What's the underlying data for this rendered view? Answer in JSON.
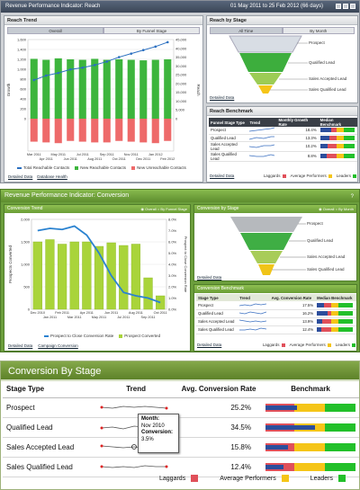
{
  "panel1": {
    "title": "Revenue Performance Indicator: Reach",
    "date_range": "01 May 2011  to  25 Feb 2012 (66 days)",
    "reach_trend": {
      "header": "Reach Trend",
      "tabs": [
        "Overall",
        "By Funnel Stage"
      ],
      "y_left_label": "Growth",
      "y_right_label": "Reach",
      "legend": [
        "Total Reachable Contacts",
        "New Reachable Contacts",
        "New Unreachable Contacts"
      ],
      "links": [
        "Detailed Data",
        "Database Health"
      ]
    },
    "reach_by_stage": {
      "header": "Reach by Stage",
      "tabs": [
        "All Time",
        "By Month"
      ],
      "stages": [
        "Prospect",
        "Qualified Lead",
        "Sales Accepted Lead",
        "Sales Qualified Lead"
      ],
      "link": "Detailed Data"
    },
    "reach_benchmark": {
      "header": "Reach Benchmark",
      "columns": [
        "Funnel Stage Type",
        "Trend",
        "Monthly Growth Rate",
        "Median Benchmark"
      ],
      "rows": [
        {
          "stage": "Prospect",
          "rate": "18.4%"
        },
        {
          "stage": "Qualified Lead",
          "rate": "13.3%"
        },
        {
          "stage": "Sales Accepted Lead",
          "rate": "10.2%"
        },
        {
          "stage": "Sales Qualified Lead",
          "rate": "8.8%"
        }
      ],
      "link": "Detailed Data",
      "legend": [
        "Laggards",
        "Average Performers",
        "Leaders"
      ]
    }
  },
  "panel2": {
    "title": "Revenue Performance Indicator: Conversion",
    "help": "?",
    "conversion_trend": {
      "header": "Conversion Trend",
      "radios": [
        "Overall",
        "By Funnel Stage"
      ],
      "y_left_label": "Prospects Converted",
      "y_right_label": "Prospect to Close Conversion Rate",
      "legend": [
        "Prospect to Close Conversion Rate",
        "Prospect Converted"
      ],
      "links": [
        "Detailed Data",
        "Campaign Conversion"
      ]
    },
    "conversion_by_stage": {
      "header": "Conversion by Stage",
      "radios": [
        "Overall",
        "By Month"
      ],
      "stages": [
        "Prospect",
        "Qualified Lead",
        "Sales Accepted Lead",
        "Sales Qualified Lead"
      ],
      "link": "Detailed Data"
    },
    "conversion_benchmark": {
      "header": "Conversion Benchmark",
      "columns": [
        "Stage Type",
        "Trend",
        "Avg. Conversion Rate",
        "Median Benchmark"
      ],
      "rows": [
        {
          "stage": "Prospect",
          "rate": "17.5%"
        },
        {
          "stage": "Qualified Lead",
          "rate": "16.2%"
        },
        {
          "stage": "Sales Accepted Lead",
          "rate": "13.9%"
        },
        {
          "stage": "Sales Qualified Lead",
          "rate": "12.4%"
        }
      ],
      "link": "Detailed Data",
      "legend": [
        "Laggards",
        "Average Performers",
        "Leaders"
      ]
    }
  },
  "panel3": {
    "title": "Conversion By Stage",
    "columns": [
      "Stage Type",
      "Trend",
      "Avg. Conversion Rate",
      "Benchmark"
    ],
    "rows": [
      {
        "stage": "Prospect",
        "rate": "25.2%",
        "bench_fill": 0.35
      },
      {
        "stage": "Qualified Lead",
        "rate": "34.5%",
        "bench_fill": 0.55
      },
      {
        "stage": "Sales Accepted Lead",
        "rate": "15.8%",
        "bench_fill": 0.25
      },
      {
        "stage": "Sales Qualified Lead",
        "rate": "12.4%",
        "bench_fill": 0.2
      }
    ],
    "tooltip": {
      "month_label": "Month:",
      "month": "Nov 2010",
      "conv_label": "Conversion:",
      "conv": "3.5%"
    },
    "legend": [
      "Laggards",
      "Average Performers",
      "Leaders"
    ],
    "colors": {
      "laggards": "#e0505a",
      "average": "#f5c518",
      "leaders": "#22c02a",
      "bar": "#2c4e9c"
    }
  },
  "chart_data": [
    {
      "type": "bar",
      "categories": [
        "Mar 2011",
        "Apr 2011",
        "May 2011",
        "Jun 2011",
        "Jul 2011",
        "Aug 2011",
        "Sep 2011",
        "Oct 2011",
        "Nov 2011",
        "Dec 2011",
        "Jan 2012",
        "Feb 2012"
      ],
      "series": [
        {
          "name": "New Reachable Contacts",
          "values": [
            1210,
            1190,
            1220,
            1200,
            1190,
            1210,
            1190,
            1200,
            1190,
            1180,
            1190,
            1200
          ]
        },
        {
          "name": "New Unreachable Contacts",
          "values": [
            -310,
            -320,
            -330,
            -300,
            -310,
            -320,
            -320,
            -300,
            -310,
            -320,
            -330,
            -300
          ]
        },
        {
          "name": "Total Reachable Contacts",
          "values": [
            22000,
            24500,
            26000,
            28000,
            29000,
            30500,
            32500,
            35000,
            37000,
            39000,
            41000,
            43500
          ]
        }
      ],
      "y_ticks": [
        "1,600",
        "1,400",
        "1,200",
        "1,000",
        "800",
        "600",
        "400",
        "200",
        "0"
      ],
      "y2_ticks": [
        "45,000",
        "40,000",
        "35,000",
        "30,000",
        "25,000",
        "20,000",
        "15,000",
        "10,000",
        "5,000",
        "0"
      ],
      "x_ticks": [
        "Mar 2011",
        "Apr 2011",
        "May 2011",
        "Jun 2011",
        "Jul 2011",
        "Aug 2011",
        "Sep 2011",
        "Oct 2011",
        "Nov 2011",
        "Dec 2011",
        "Jan 2012",
        "Feb 2012"
      ]
    },
    {
      "type": "bar",
      "categories": [
        "Dec 2010",
        "Jan 2011",
        "Feb 2011",
        "Mar 2011",
        "Apr 2011",
        "May 2011",
        "Jun 2011",
        "Jul 2011",
        "Aug 2011",
        "Sep 2011",
        "Oct 2011"
      ],
      "series": [
        {
          "name": "Prospect Converted",
          "values": [
            1500,
            1550,
            1450,
            1500,
            1500,
            1400,
            1480,
            1420,
            1450,
            700,
            300
          ]
        },
        {
          "name": "Prospect to Close Conversion Rate",
          "values": [
            0.07,
            0.072,
            0.071,
            0.074,
            0.066,
            0.05,
            0.03,
            0.015,
            0.012,
            0.01,
            0.006
          ]
        }
      ],
      "y_ticks": [
        "2,000",
        "1,500",
        "1,000",
        "500",
        "0"
      ],
      "y2_ticks": [
        "8.0%",
        "7.0%",
        "6.0%",
        "5.0%",
        "4.0%",
        "3.0%",
        "2.0%",
        "1.0%",
        "0.0%"
      ],
      "x_ticks": [
        "Dec 2010",
        "Feb 2011",
        "Apr 2011",
        "Jun 2011",
        "Aug 2011",
        "Oct 2011",
        "Jan 2011",
        "Mar 2011",
        "May 2011",
        "Jul 2011",
        "Sep 2011"
      ]
    }
  ]
}
